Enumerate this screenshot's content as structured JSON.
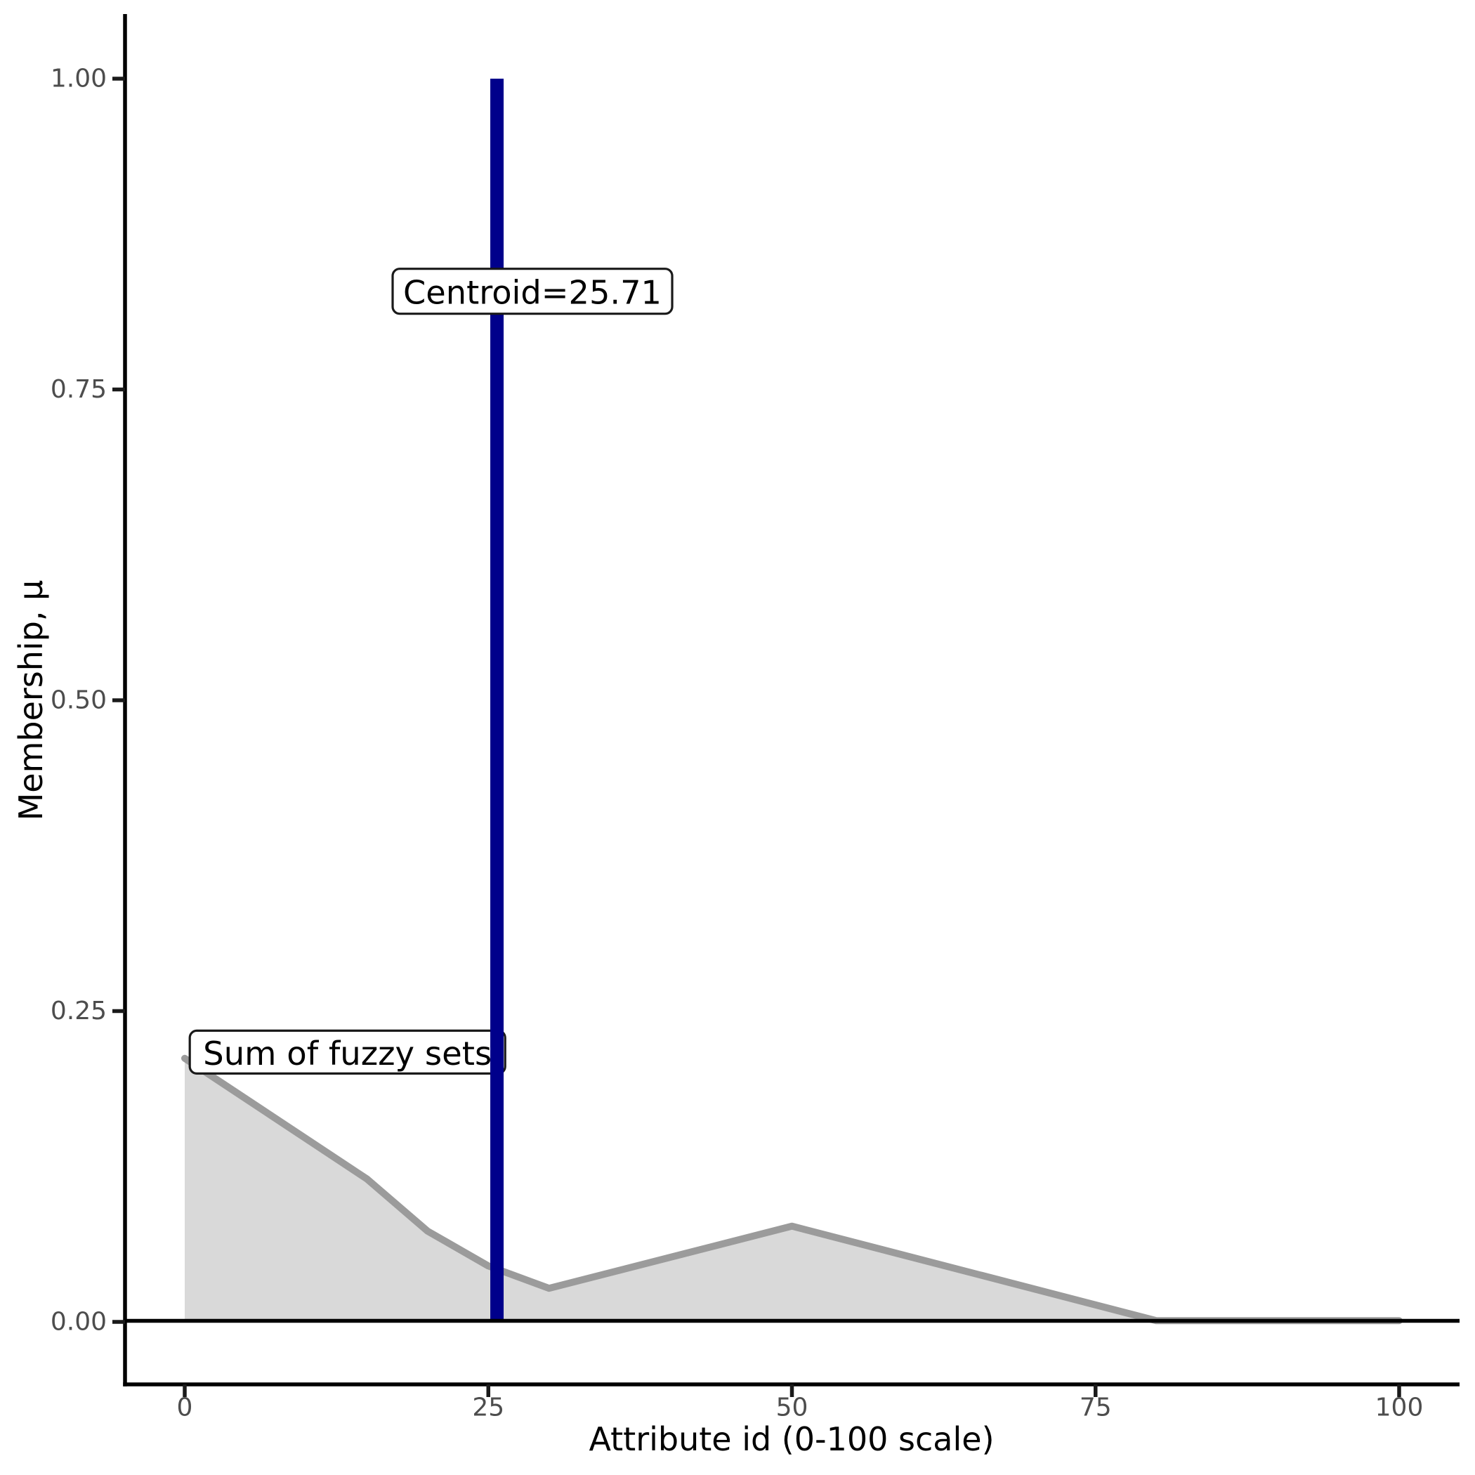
{
  "chart_data": {
    "type": "area",
    "title": "",
    "xlabel": "Attribute id (0-100 scale)",
    "ylabel": "Membership, μ",
    "grid": false,
    "legend_position": "none",
    "theme": "classic-white",
    "x_axis": {
      "label": "Attribute id (0-100 scale)",
      "range": [
        0,
        100
      ],
      "ticks": [
        {
          "label": "0",
          "value": 0
        },
        {
          "label": "25",
          "value": 25
        },
        {
          "label": "50",
          "value": 50
        },
        {
          "label": "75",
          "value": 75
        },
        {
          "label": "100",
          "value": 100
        }
      ]
    },
    "y_axis": {
      "label": "Membership, μ",
      "range": [
        0,
        1
      ],
      "ticks": [
        {
          "label": "0.00",
          "value": 0
        },
        {
          "label": "0.25",
          "value": 0.25
        },
        {
          "label": "0.50",
          "value": 0.5
        },
        {
          "label": "0.75",
          "value": 0.75
        },
        {
          "label": "1.00",
          "value": 1
        }
      ]
    },
    "series": [
      {
        "name": "Sum of fuzzy sets",
        "line_color": "#9b9b9b",
        "fill_color": "#d9d9d9",
        "points": [
          [
            0,
            0.212
          ],
          [
            15,
            0.115
          ],
          [
            20,
            0.073
          ],
          [
            25,
            0.045
          ],
          [
            30,
            0.027
          ],
          [
            50,
            0.077
          ],
          [
            80,
            0.001
          ],
          [
            100,
            0.001
          ]
        ]
      }
    ],
    "baseline": {
      "value": 0,
      "color": "#000000"
    },
    "centroid_line": {
      "value": 25.71,
      "from": 0,
      "to": 1,
      "color": "#00008B"
    },
    "annotations": [
      {
        "id": "sum-label",
        "text": "Sum of fuzzy sets",
        "x": 13.4,
        "y": 0.217
      },
      {
        "id": "centroid-label",
        "text": "Centroid=25.71",
        "x": 28.63,
        "y": 0.829
      }
    ]
  }
}
